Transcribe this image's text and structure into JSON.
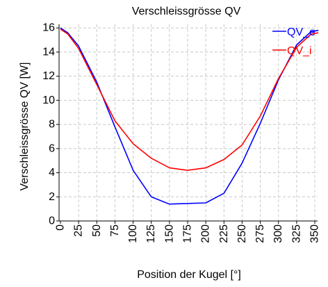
{
  "chart_data": {
    "type": "line",
    "title": "Verschleissgrösse QV",
    "xlabel": "Position der Kugel [°]",
    "ylabel": "Verschleissgrösse QV [W]",
    "xlim": [
      0,
      355
    ],
    "ylim": [
      0,
      16.3
    ],
    "xticks": [
      "0",
      "25",
      "50",
      "75",
      "100",
      "125",
      "150",
      "175",
      "200",
      "225",
      "250",
      "275",
      "300",
      "325",
      "350"
    ],
    "yticks": [
      "0",
      "2",
      "4",
      "6",
      "8",
      "10",
      "12",
      "14",
      "16"
    ],
    "grid": true,
    "legend_position": "top-right",
    "series": [
      {
        "name": "QV_e",
        "color": "#0000ff",
        "x": [
          0,
          10,
          25,
          50,
          75,
          100,
          125,
          150,
          175,
          200,
          225,
          250,
          275,
          300,
          325,
          345,
          355
        ],
        "y": [
          16.0,
          15.6,
          14.5,
          11.5,
          7.8,
          4.2,
          2.0,
          1.4,
          1.45,
          1.5,
          2.3,
          4.8,
          8.1,
          11.7,
          14.6,
          15.7,
          15.8
        ]
      },
      {
        "name": "QV_i",
        "color": "#ff0000",
        "x": [
          0,
          10,
          25,
          50,
          75,
          100,
          125,
          150,
          175,
          200,
          225,
          250,
          275,
          300,
          325,
          345,
          355
        ],
        "y": [
          15.9,
          15.5,
          14.3,
          11.3,
          8.3,
          6.4,
          5.2,
          4.4,
          4.2,
          4.4,
          5.1,
          6.3,
          8.7,
          11.8,
          14.4,
          15.5,
          15.6
        ]
      }
    ]
  }
}
